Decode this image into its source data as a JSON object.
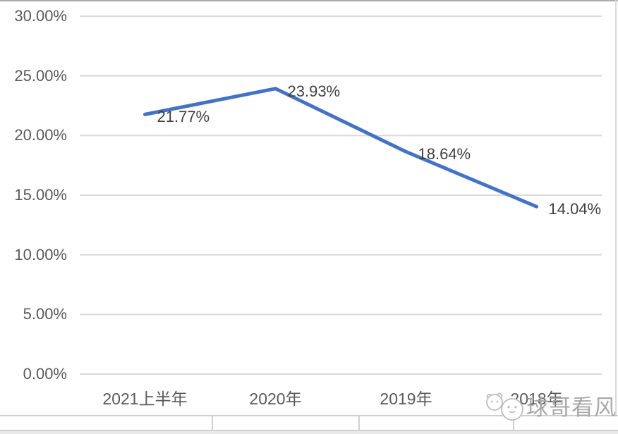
{
  "chart_data": {
    "type": "line",
    "title": "",
    "xlabel": "",
    "ylabel": "",
    "categories": [
      "2021上半年",
      "2020年",
      "2019年",
      "2018年"
    ],
    "values": [
      21.77,
      23.93,
      18.64,
      14.04
    ],
    "data_labels": [
      "21.77%",
      "23.93%",
      "18.64%",
      "14.04%"
    ],
    "ylim": [
      0,
      30
    ],
    "y_ticks": [
      {
        "value": 30,
        "label": "30.00%"
      },
      {
        "value": 25,
        "label": "25.00%"
      },
      {
        "value": 20,
        "label": "20.00%"
      },
      {
        "value": 15,
        "label": "15.00%"
      },
      {
        "value": 10,
        "label": "10.00%"
      },
      {
        "value": 5,
        "label": "5.00%"
      },
      {
        "value": 0,
        "label": "0.00%"
      }
    ],
    "grid": true,
    "legend": "none"
  },
  "colors": {
    "line": "#4472C4",
    "gridline": "#d9d9d9",
    "axis_label": "#595959",
    "data_label": "#404040",
    "border_top": "#ababab",
    "border_right": "#d9d9d9",
    "table_line": "#cfcfcf",
    "table_strip_bg": "#e9e9e9",
    "watermark": "#a8a8a8"
  },
  "watermark": {
    "text": "球哥看风",
    "icon": "panda-face-icon"
  }
}
